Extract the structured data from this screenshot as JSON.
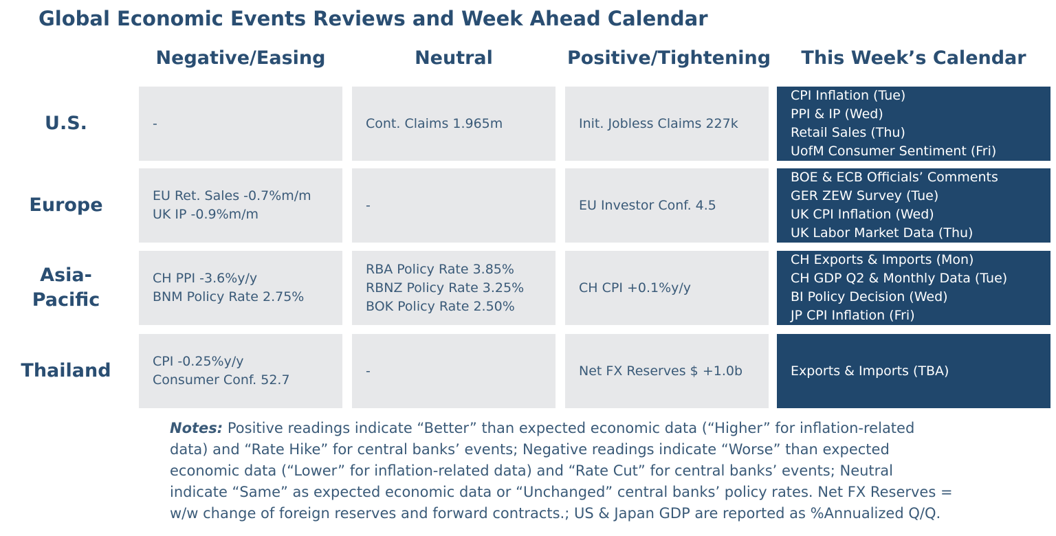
{
  "title": "Global Economic Events Reviews and Week Ahead Calendar",
  "columns": [
    "Negative/Easing",
    "Neutral",
    "Positive/Tightening",
    "This Week’s Calendar"
  ],
  "rows": [
    {
      "region": [
        "U.S."
      ],
      "negative": [
        "-"
      ],
      "neutral": [
        "Cont. Claims 1.965m"
      ],
      "positive": [
        "Init. Jobless Claims 227k"
      ],
      "calendar": [
        "CPI Inflation (Tue)",
        "PPI & IP (Wed)",
        "Retail Sales (Thu)",
        "UofM Consumer Sentiment (Fri)"
      ]
    },
    {
      "region": [
        "Europe"
      ],
      "negative": [
        "EU Ret. Sales -0.7%m/m",
        "UK IP -0.9%m/m"
      ],
      "neutral": [
        "-"
      ],
      "positive": [
        "EU Investor Conf. 4.5"
      ],
      "calendar": [
        "BOE & ECB Officials’ Comments",
        "GER ZEW Survey (Tue)",
        "UK CPI Inflation (Wed)",
        "UK Labor Market Data (Thu)"
      ]
    },
    {
      "region": [
        "Asia-",
        "Pacific"
      ],
      "negative": [
        "CH PPI -3.6%y/y",
        "BNM Policy Rate 2.75%"
      ],
      "neutral": [
        "RBA Policy Rate 3.85%",
        "RBNZ Policy Rate 3.25%",
        "BOK Policy Rate 2.50%"
      ],
      "positive": [
        "CH CPI +0.1%y/y"
      ],
      "calendar": [
        "CH Exports & Imports (Mon)",
        "CH GDP Q2 & Monthly Data (Tue)",
        "BI Policy Decision (Wed)",
        "JP CPI Inflation (Fri)"
      ]
    },
    {
      "region": [
        "Thailand"
      ],
      "negative": [
        "CPI -0.25%y/y",
        "Consumer Conf. 52.7"
      ],
      "neutral": [
        "-"
      ],
      "positive": [
        "Net FX Reserves $ +1.0b"
      ],
      "calendar": [
        "Exports & Imports (TBA)"
      ]
    }
  ],
  "notes": {
    "label": "Notes:",
    "lines": [
      " Positive readings indicate “Better” than expected economic data (“Higher” for inflation-related",
      "data) and “Rate Hike” for central banks’ events; Negative readings indicate “Worse” than expected",
      "economic data (“Lower” for inflation-related data) and “Rate Cut” for central banks’ events; Neutral",
      "indicate “Same” as expected economic data or “Unchanged” central banks’ policy rates. Net FX Reserves =",
      "w/w change of foreign reserves and forward contracts.; US & Japan GDP are reported as %Annualized Q/Q."
    ]
  }
}
